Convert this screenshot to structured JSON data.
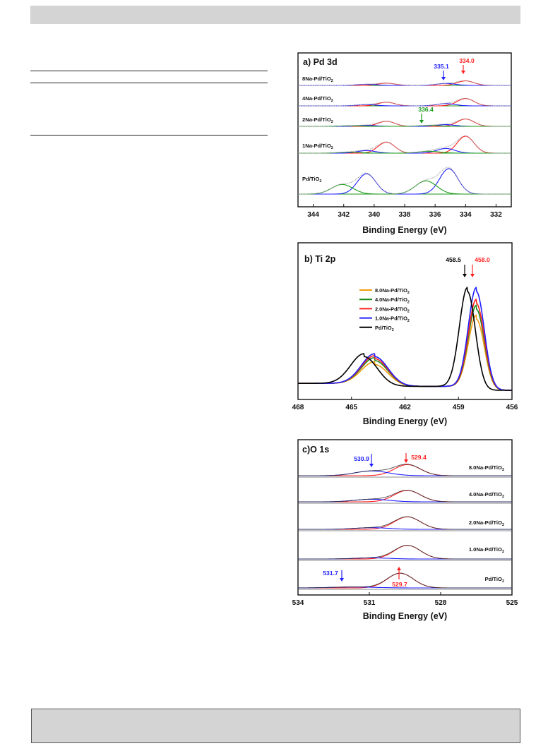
{
  "page": {
    "colors": {
      "header_bar": "#d4d4d4",
      "footer_box": "#d4d4d4"
    }
  },
  "chart_data": [
    {
      "type": "line",
      "title": "a) Pd 3d",
      "xlabel": "Binding Energy (eV)",
      "ylabel": "",
      "xlim": [
        345,
        331
      ],
      "x_ticks": [
        344,
        342,
        340,
        338,
        336,
        334,
        332
      ],
      "x_reversed": true,
      "stacked_spectra": [
        {
          "name": "8Na-Pd/TiO2",
          "components": [
            {
              "color": "#ff2020",
              "peaks": [
                [
                  339.2,
                  0.16,
                  0.55
                ],
                [
                  334.0,
                  0.32,
                  0.55
                ]
              ]
            },
            {
              "color": "#2020ff",
              "peaks": [
                [
                  340.5,
                  0.08,
                  0.6
                ],
                [
                  335.3,
                  0.14,
                  0.6
                ]
              ]
            }
          ]
        },
        {
          "name": "4Na-Pd/TiO2",
          "components": [
            {
              "color": "#ff2020",
              "peaks": [
                [
                  339.2,
                  0.26,
                  0.55
                ],
                [
                  334.0,
                  0.52,
                  0.55
                ]
              ]
            },
            {
              "color": "#2020ff",
              "peaks": [
                [
                  340.5,
                  0.09,
                  0.6
                ],
                [
                  335.3,
                  0.16,
                  0.6
                ]
              ]
            }
          ]
        },
        {
          "name": "2Na-Pd/TiO2",
          "components": [
            {
              "color": "#ff2020",
              "peaks": [
                [
                  339.2,
                  0.36,
                  0.55
                ],
                [
                  334.0,
                  0.52,
                  0.55
                ]
              ]
            },
            {
              "color": "#2020ff",
              "peaks": [
                [
                  340.5,
                  0.07,
                  0.6
                ],
                [
                  335.3,
                  0.12,
                  0.6
                ]
              ]
            },
            {
              "color": "#1a9a1a",
              "peaks": [
                [
                  341.6,
                  0.04,
                  0.7
                ],
                [
                  336.4,
                  0.06,
                  0.7
                ]
              ]
            }
          ]
        },
        {
          "name": "1Na-Pd/TiO2",
          "components": [
            {
              "color": "#ff2020",
              "peaks": [
                [
                  339.2,
                  0.52,
                  0.55
                ],
                [
                  334.0,
                  0.8,
                  0.55
                ]
              ]
            },
            {
              "color": "#2020ff",
              "peaks": [
                [
                  340.5,
                  0.12,
                  0.6
                ],
                [
                  335.3,
                  0.22,
                  0.6
                ]
              ]
            },
            {
              "color": "#1a9a1a",
              "peaks": [
                [
                  341.6,
                  0.05,
                  0.7
                ],
                [
                  336.4,
                  0.09,
                  0.7
                ]
              ]
            }
          ]
        },
        {
          "name": "Pd/TiO2",
          "components": [
            {
              "color": "#2020ff",
              "peaks": [
                [
                  340.5,
                  0.8,
                  0.6
                ],
                [
                  335.1,
                  1.0,
                  0.6
                ]
              ]
            },
            {
              "color": "#1a9a1a",
              "peaks": [
                [
                  342.1,
                  0.38,
                  0.7
                ],
                [
                  336.6,
                  0.52,
                  0.7
                ]
              ]
            }
          ]
        }
      ],
      "annotations": [
        {
          "text": "335.1",
          "x": 335.1,
          "color": "#2020ff"
        },
        {
          "text": "334.0",
          "x": 334.0,
          "color": "#ff2020"
        },
        {
          "text": "336.4",
          "x": 336.4,
          "color": "#1a9a1a"
        }
      ]
    },
    {
      "type": "line",
      "title": "b) Ti 2p",
      "xlabel": "Binding Energy (eV)",
      "ylabel": "",
      "xlim": [
        468,
        456
      ],
      "x_ticks": [
        468,
        465,
        462,
        459,
        456
      ],
      "x_reversed": true,
      "legend_position": "center-left",
      "series": [
        {
          "name": "8.0Na-Pd/TiO2",
          "color": "#f39c12",
          "peaks": [
            [
              458.0,
              0.72
            ],
            [
              463.7,
              0.22
            ]
          ]
        },
        {
          "name": "4.0Na-Pd/TiO2",
          "color": "#1a8a1a",
          "peaks": [
            [
              458.0,
              0.82
            ],
            [
              463.7,
              0.26
            ]
          ]
        },
        {
          "name": "2.0Na-Pd/TiO2",
          "color": "#ff2020",
          "peaks": [
            [
              458.0,
              0.88
            ],
            [
              463.7,
              0.28
            ]
          ]
        },
        {
          "name": "1.0Na-Pd/TiO2",
          "color": "#2020ff",
          "peaks": [
            [
              458.0,
              1.0
            ],
            [
              463.7,
              0.3
            ]
          ]
        },
        {
          "name": "Pd/TiO2",
          "color": "#000000",
          "peaks": [
            [
              458.5,
              1.0
            ],
            [
              464.3,
              0.3
            ]
          ]
        }
      ],
      "annotations": [
        {
          "text": "458.5",
          "x": 458.5,
          "color": "#000000"
        },
        {
          "text": "458.0",
          "x": 458.0,
          "color": "#ff2020"
        }
      ]
    },
    {
      "type": "line",
      "title": "c)O 1s",
      "xlabel": "Binding Energy (eV)",
      "ylabel": "",
      "xlim": [
        534,
        525
      ],
      "x_ticks": [
        534,
        531,
        528,
        525
      ],
      "x_reversed": true,
      "stacked_spectra": [
        {
          "name": "8.0Na-Pd/TiO2",
          "components": [
            {
              "color": "#ff2020",
              "peaks": [
                [
                  529.4,
                  0.6,
                  0.55
                ]
              ]
            },
            {
              "color": "#2020ff",
              "peaks": [
                [
                  530.9,
                  0.26,
                  0.7
                ]
              ]
            }
          ]
        },
        {
          "name": "4.0Na-Pd/TiO2",
          "components": [
            {
              "color": "#ff2020",
              "peaks": [
                [
                  529.4,
                  0.62,
                  0.55
                ]
              ]
            },
            {
              "color": "#2020ff",
              "peaks": [
                [
                  530.9,
                  0.14,
                  0.7
                ]
              ]
            }
          ]
        },
        {
          "name": "2.0Na-Pd/TiO2",
          "components": [
            {
              "color": "#ff2020",
              "peaks": [
                [
                  529.4,
                  0.68,
                  0.55
                ]
              ]
            },
            {
              "color": "#2020ff",
              "peaks": [
                [
                  530.9,
                  0.09,
                  0.7
                ]
              ]
            }
          ]
        },
        {
          "name": "1.0Na-Pd/TiO2",
          "components": [
            {
              "color": "#ff2020",
              "peaks": [
                [
                  529.4,
                  0.74,
                  0.55
                ]
              ]
            },
            {
              "color": "#2020ff",
              "peaks": [
                [
                  530.9,
                  0.06,
                  0.7
                ]
              ]
            }
          ]
        },
        {
          "name": "Pd/TiO2",
          "components": [
            {
              "color": "#ff2020",
              "peaks": [
                [
                  529.7,
                  0.8,
                  0.55
                ]
              ]
            },
            {
              "color": "#2020ff",
              "peaks": [
                [
                  531.7,
                  0.05,
                  0.9
                ]
              ]
            }
          ]
        }
      ],
      "annotations": [
        {
          "text": "530.9",
          "x": 530.9,
          "color": "#2020ff"
        },
        {
          "text": "529.4",
          "x": 529.4,
          "color": "#ff2020"
        },
        {
          "text": "531.7",
          "x": 531.7,
          "color": "#2020ff"
        },
        {
          "text": "529.7",
          "x": 529.7,
          "color": "#ff2020"
        }
      ]
    }
  ]
}
